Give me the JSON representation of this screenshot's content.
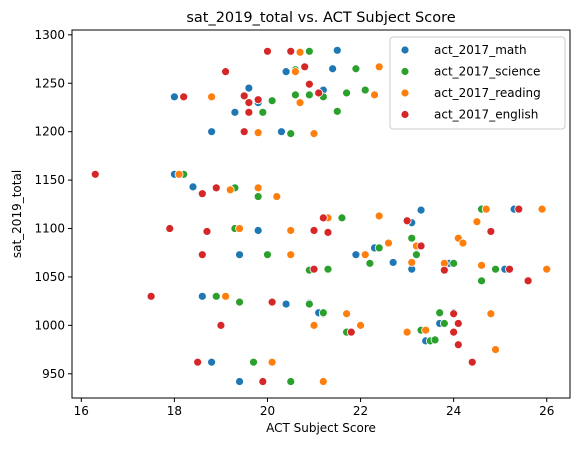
{
  "chart_data": {
    "type": "scatter",
    "title": "sat_2019_total vs. ACT Subject Score",
    "xlabel": "ACT Subject Score",
    "ylabel": "sat_2019_total",
    "xlim": [
      15.8,
      26.5
    ],
    "ylim": [
      925,
      1305
    ],
    "xticks": [
      16,
      18,
      20,
      22,
      24,
      26
    ],
    "yticks": [
      950,
      1000,
      1050,
      1100,
      1150,
      1200,
      1250,
      1300
    ],
    "grid": false,
    "legend_position": "top-right",
    "series": [
      {
        "name": "act_2017_math",
        "color": "#1f77b4",
        "points": [
          [
            18.0,
            1236
          ],
          [
            19.3,
            1220
          ],
          [
            19.8,
            1230
          ],
          [
            20.4,
            1262
          ],
          [
            21.5,
            1284
          ],
          [
            21.4,
            1265
          ],
          [
            19.6,
            1245
          ],
          [
            21.2,
            1243
          ],
          [
            18.8,
            1200
          ],
          [
            20.3,
            1200
          ],
          [
            18.0,
            1156
          ],
          [
            18.4,
            1143
          ],
          [
            19.2,
            1140
          ],
          [
            19.8,
            1098
          ],
          [
            19.4,
            1073
          ],
          [
            18.6,
            1030
          ],
          [
            18.8,
            962
          ],
          [
            19.4,
            942
          ],
          [
            20.4,
            1022
          ],
          [
            20.9,
            1023
          ],
          [
            21.1,
            1013
          ],
          [
            21.2,
            1012
          ],
          [
            21.6,
            1111
          ],
          [
            21.8,
            993
          ],
          [
            21.9,
            1073
          ],
          [
            22.3,
            1080
          ],
          [
            22.7,
            1065
          ],
          [
            23.1,
            1106
          ],
          [
            23.3,
            1119
          ],
          [
            23.1,
            1058
          ],
          [
            23.4,
            995
          ],
          [
            23.4,
            984
          ],
          [
            23.7,
            1002
          ],
          [
            23.9,
            1064
          ],
          [
            24.0,
            1013
          ],
          [
            24.6,
            1046
          ],
          [
            24.9,
            1058
          ],
          [
            25.1,
            1058
          ],
          [
            25.3,
            1120
          ],
          [
            23.2,
            1081
          ]
        ]
      },
      {
        "name": "act_2017_science",
        "color": "#2ca02c",
        "points": [
          [
            18.2,
            1156
          ],
          [
            19.3,
            1142
          ],
          [
            19.8,
            1133
          ],
          [
            20.1,
            1232
          ],
          [
            19.9,
            1220
          ],
          [
            20.6,
            1238
          ],
          [
            20.5,
            1198
          ],
          [
            20.9,
            1283
          ],
          [
            20.9,
            1238
          ],
          [
            21.2,
            1236
          ],
          [
            21.5,
            1221
          ],
          [
            21.7,
            1240
          ],
          [
            21.9,
            1265
          ],
          [
            22.1,
            1243
          ],
          [
            20.0,
            1073
          ],
          [
            19.3,
            1100
          ],
          [
            18.9,
            1030
          ],
          [
            19.4,
            1024
          ],
          [
            19.7,
            962
          ],
          [
            20.5,
            942
          ],
          [
            20.9,
            1022
          ],
          [
            20.9,
            1057
          ],
          [
            21.3,
            1058
          ],
          [
            21.2,
            1013
          ],
          [
            21.6,
            1111
          ],
          [
            21.7,
            993
          ],
          [
            22.2,
            1064
          ],
          [
            22.4,
            1080
          ],
          [
            23.1,
            1090
          ],
          [
            23.2,
            1073
          ],
          [
            23.3,
            995
          ],
          [
            23.5,
            984
          ],
          [
            23.6,
            985
          ],
          [
            23.7,
            1013
          ],
          [
            23.8,
            1002
          ],
          [
            24.0,
            1064
          ],
          [
            24.6,
            1120
          ],
          [
            24.6,
            1046
          ],
          [
            24.9,
            1058
          ],
          [
            20.6,
            1264
          ]
        ]
      },
      {
        "name": "act_2017_reading",
        "color": "#ff7f0e",
        "points": [
          [
            18.1,
            1156
          ],
          [
            18.8,
            1236
          ],
          [
            19.2,
            1140
          ],
          [
            19.8,
            1142
          ],
          [
            19.8,
            1199
          ],
          [
            20.2,
            1133
          ],
          [
            20.5,
            1098
          ],
          [
            20.5,
            1073
          ],
          [
            20.7,
            1282
          ],
          [
            20.6,
            1262
          ],
          [
            20.7,
            1230
          ],
          [
            21.0,
            1198
          ],
          [
            21.0,
            1000
          ],
          [
            21.3,
            1111
          ],
          [
            21.7,
            1012
          ],
          [
            22.0,
            1000
          ],
          [
            22.1,
            1073
          ],
          [
            22.3,
            1238
          ],
          [
            22.4,
            1267
          ],
          [
            22.4,
            1113
          ],
          [
            19.1,
            1030
          ],
          [
            19.4,
            1100
          ],
          [
            20.1,
            962
          ],
          [
            21.2,
            942
          ],
          [
            22.6,
            1085
          ],
          [
            23.0,
            993
          ],
          [
            23.1,
            1065
          ],
          [
            23.2,
            1082
          ],
          [
            23.4,
            995
          ],
          [
            23.8,
            1064
          ],
          [
            24.1,
            1090
          ],
          [
            24.2,
            1085
          ],
          [
            24.5,
            1107
          ],
          [
            24.6,
            1062
          ],
          [
            24.7,
            1120
          ],
          [
            24.8,
            1012
          ],
          [
            24.9,
            975
          ],
          [
            25.6,
            1047
          ],
          [
            25.9,
            1120
          ],
          [
            26.0,
            1058
          ]
        ]
      },
      {
        "name": "act_2017_english",
        "color": "#d62728",
        "points": [
          [
            16.3,
            1156
          ],
          [
            17.5,
            1030
          ],
          [
            17.9,
            1100
          ],
          [
            18.2,
            1236
          ],
          [
            18.5,
            962
          ],
          [
            18.6,
            1073
          ],
          [
            18.6,
            1136
          ],
          [
            18.7,
            1097
          ],
          [
            18.9,
            1142
          ],
          [
            19.0,
            1000
          ],
          [
            19.1,
            1262
          ],
          [
            19.5,
            1237
          ],
          [
            19.5,
            1200
          ],
          [
            19.6,
            1220
          ],
          [
            19.6,
            1230
          ],
          [
            19.8,
            1233
          ],
          [
            19.9,
            942
          ],
          [
            20.0,
            1283
          ],
          [
            20.1,
            1024
          ],
          [
            20.5,
            1283
          ],
          [
            20.8,
            1267
          ],
          [
            20.9,
            1249
          ],
          [
            21.0,
            1058
          ],
          [
            21.0,
            1098
          ],
          [
            21.1,
            1240
          ],
          [
            21.2,
            1111
          ],
          [
            21.3,
            1096
          ],
          [
            21.8,
            993
          ],
          [
            23.0,
            1108
          ],
          [
            23.3,
            1082
          ],
          [
            23.8,
            1057
          ],
          [
            24.0,
            1012
          ],
          [
            24.0,
            993
          ],
          [
            24.1,
            1002
          ],
          [
            24.1,
            980
          ],
          [
            24.4,
            962
          ],
          [
            24.8,
            1097
          ],
          [
            25.2,
            1058
          ],
          [
            25.4,
            1120
          ],
          [
            25.6,
            1046
          ]
        ]
      }
    ]
  }
}
